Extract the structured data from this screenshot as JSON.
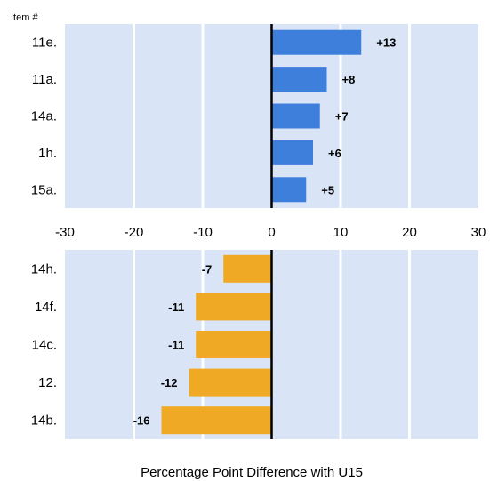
{
  "chart_data": [
    {
      "type": "bar",
      "orientation": "horizontal",
      "item_header": "Item #",
      "categories": [
        "11e.",
        "11a.",
        "14a.",
        "1h.",
        "15a."
      ],
      "values": [
        13,
        8,
        7,
        6,
        5
      ],
      "data_labels": [
        "+13",
        "+8",
        "+7",
        "+6",
        "+5"
      ],
      "xlim": [
        -30,
        30
      ],
      "x_ticks": [
        "-30",
        "-20",
        "-10",
        "0",
        "10",
        "20",
        "30"
      ],
      "bar_color": "#3f7fdc",
      "background_color": "#d9e5f7",
      "grid": true
    },
    {
      "type": "bar",
      "orientation": "horizontal",
      "categories": [
        "14h.",
        "14f.",
        "14c.",
        "12.",
        "14b."
      ],
      "values": [
        -7,
        -11,
        -11,
        -12,
        -16
      ],
      "data_labels": [
        "-7",
        "-11",
        "-11",
        "-12",
        "-16"
      ],
      "xlim": [
        -30,
        30
      ],
      "bar_color": "#efa925",
      "background_color": "#d9e5f7",
      "grid": true
    }
  ],
  "xlabel": "Percentage Point Difference with U15"
}
